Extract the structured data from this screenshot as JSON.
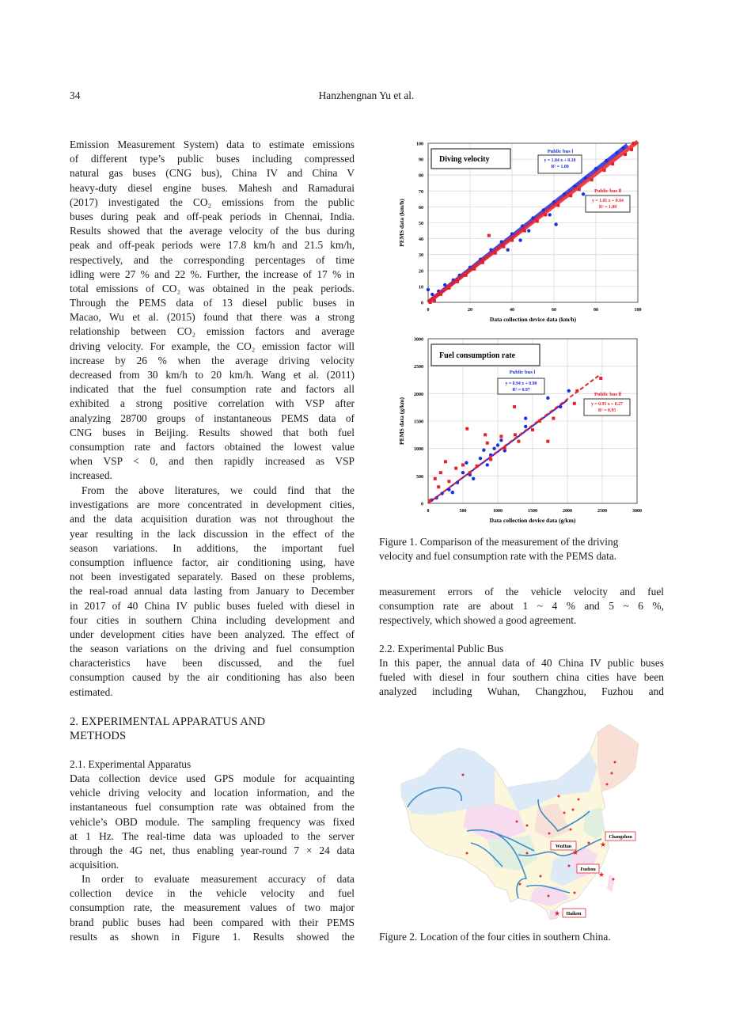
{
  "header": {
    "page_number": "34",
    "running_title": "Hanzhengnan Yu et al."
  },
  "left_column": {
    "p1": [
      "Emission Measurement System) data to estimate emissions",
      "of different type’s public buses including compressed",
      "natural gas buses (CNG bus), China IV and China V",
      "heavy-duty diesel engine buses. Mahesh and Ramadurai",
      "(2017) investigated the CO₂ emissions from the public",
      "buses during peak and off-peak periods in Chennai, India.",
      "Results showed that the average velocity of the bus during",
      "peak and off-peak periods were 17.8 km/h and 21.5 km/h,",
      "respectively, and the corresponding percentages of time",
      "idling were 27 % and 22 %. Further, the increase of 17 % in",
      "total emissions of CO₂ was obtained in the peak periods.",
      "Through the PEMS data of 13 diesel public buses in",
      "Macao, Wu et al. (2015) found that there was a strong",
      "relationship between CO₂ emission factors and average",
      "driving velocity. For example, the CO₂ emission factor will",
      "increase by 26 % when the average driving velocity",
      "decreased from 30 km/h to 20 km/h. Wang et al. (2011)",
      "indicated that the fuel consumption rate and factors all",
      "exhibited a strong positive correlation with VSP after",
      "analyzing 28700 groups of instantaneous PEMS data of",
      "CNG buses in Beijing. Results showed that both fuel",
      "consumption rate and factors obtained the lowest value",
      "when VSP < 0, and then rapidly increased as VSP",
      "increased."
    ],
    "p2": [
      "From the above literatures, we could find that the",
      "investigations are more concentrated in development cities,",
      "and the data acquisition duration was not throughout the",
      "year resulting in the lack discussion in the effect of the",
      "season variations. In additions, the important fuel",
      "consumption influence factor, air conditioning using, have",
      "not been investigated separately. Based on these problems,",
      "the real-road annual data lasting from January to December",
      "in 2017 of 40 China IV public buses fueled with diesel in",
      "four cities in southern China including development and",
      "under development cities have been analyzed. The effect of",
      "the season variations on the driving and fuel consumption",
      "characteristics have been discussed, and the fuel",
      "consumption caused by the air conditioning has also been",
      "estimated."
    ],
    "section_heading": [
      "2. EXPERIMENTAL APPARATUS AND",
      "METHODS"
    ],
    "subsection_2_1": "2.1. Experimental Apparatus",
    "p3": [
      "Data collection device used GPS module for acquainting",
      "vehicle driving velocity and location information, and the",
      "instantaneous fuel consumption rate was obtained from the",
      "vehicle’s OBD module. The sampling frequency was fixed",
      "at 1 Hz. The real-time data was uploaded to the server",
      "through the 4G net, thus enabling year-round 7 × 24 data",
      "acquisition."
    ],
    "p4": [
      "In order to evaluate measurement accuracy of data",
      "collection device in the vehicle velocity and fuel",
      "consumption rate, the measurement values of two major",
      "brand public buses had been compared with their PEMS",
      "results as shown in Figure 1. Results showed the"
    ]
  },
  "right_column": {
    "figure1_caption": [
      "Figure 1. Comparison of the measurement of the driving",
      "velocity and fuel consumption rate with the PEMS data."
    ],
    "p5": [
      "measurement errors of the vehicle velocity and fuel",
      "consumption rate are about 1 ~ 4 % and 5 ~ 6 %,",
      "respectively, which showed a good agreement."
    ],
    "subsection_2_2": "2.2. Experimental Public Bus",
    "p6": [
      "In this paper, the annual data of 40 China IV public buses",
      "fueled with diesel in four southern china cities have been",
      "analyzed including Wuhan, Changzhou, Fuzhou and"
    ],
    "figure2_caption": "Figure 2. Location of the four cities in southern China."
  },
  "map": {
    "cities": [
      "Changzhou",
      "WuHan",
      "Fuzhou",
      "Haikou"
    ]
  },
  "chart_data": [
    {
      "type": "scatter",
      "title": "Diving velocity",
      "xlabel": "Data collection device data (km/h)",
      "ylabel": "PEMS data (km/h)",
      "xlim": [
        0,
        100
      ],
      "ylim": [
        0,
        100
      ],
      "xticks": [
        "0",
        "20",
        "40",
        "60",
        "80",
        "100"
      ],
      "yticks": [
        "0",
        "10",
        "20",
        "30",
        "40",
        "50",
        "60",
        "70",
        "80",
        "90",
        "100"
      ],
      "grid": true,
      "series": [
        {
          "name": "Public bus Ⅰ",
          "color": "#1a2fe0",
          "equation": "y = 1.04 x + 0.10",
          "r2": "R² = 1.00",
          "slope": 1.04,
          "intercept": 0.1,
          "points": [
            [
              0,
              8
            ],
            [
              2,
              5
            ],
            [
              5,
              7
            ],
            [
              8,
              11
            ],
            [
              12,
              14
            ],
            [
              15,
              17
            ],
            [
              20,
              22
            ],
            [
              25,
              27
            ],
            [
              30,
              33
            ],
            [
              35,
              38
            ],
            [
              40,
              43
            ],
            [
              45,
              48
            ],
            [
              48,
              45
            ],
            [
              50,
              53
            ],
            [
              55,
              58
            ],
            [
              58,
              55
            ],
            [
              60,
              63
            ],
            [
              61,
              49
            ],
            [
              65,
              68
            ],
            [
              70,
              73
            ],
            [
              74,
              68
            ],
            [
              75,
              78
            ],
            [
              80,
              84
            ],
            [
              85,
              89
            ],
            [
              90,
              94
            ],
            [
              93,
              97
            ],
            [
              38,
              33
            ],
            [
              44,
              39
            ]
          ]
        },
        {
          "name": "Public bus Ⅱ",
          "color": "#e8202a",
          "equation": "y = 1.01 x + 0.04",
          "r2": "R² = 1.00",
          "slope": 1.01,
          "intercept": 0.04,
          "points": [
            [
              1,
              0
            ],
            [
              3,
              1
            ],
            [
              6,
              5
            ],
            [
              10,
              9
            ],
            [
              14,
              13
            ],
            [
              18,
              17
            ],
            [
              22,
              21
            ],
            [
              26,
              25
            ],
            [
              29,
              42
            ],
            [
              32,
              31
            ],
            [
              36,
              35
            ],
            [
              40,
              39
            ],
            [
              46,
              45
            ],
            [
              52,
              51
            ],
            [
              56,
              55
            ],
            [
              62,
              61
            ],
            [
              68,
              67
            ],
            [
              72,
              71
            ],
            [
              78,
              77
            ],
            [
              84,
              83
            ],
            [
              88,
              87
            ],
            [
              94,
              93
            ],
            [
              97,
              96
            ],
            [
              98,
              100
            ]
          ]
        }
      ]
    },
    {
      "type": "scatter",
      "title": "Fuel consumption rate",
      "xlabel": "Data collection device data (g/km)",
      "ylabel": "PEMS data (g/km)",
      "xlim": [
        0,
        3000
      ],
      "ylim": [
        0,
        3000
      ],
      "xticks": [
        "0",
        "500",
        "1000",
        "1500",
        "2000",
        "2500",
        "3000"
      ],
      "yticks": [
        "0",
        "500",
        "1000",
        "1500",
        "2000",
        "2500",
        "3000"
      ],
      "grid": true,
      "series": [
        {
          "name": "Public bus Ⅰ",
          "color": "#1a2fe0",
          "equation": "y = 0.94 x + 0.90",
          "r2": "R² = 0.97",
          "slope": 0.94,
          "intercept": 0.9,
          "points": [
            [
              50,
              60
            ],
            [
              120,
              100
            ],
            [
              200,
              180
            ],
            [
              300,
              250
            ],
            [
              350,
              200
            ],
            [
              420,
              380
            ],
            [
              500,
              560
            ],
            [
              550,
              740
            ],
            [
              600,
              520
            ],
            [
              650,
              450
            ],
            [
              750,
              820
            ],
            [
              800,
              970
            ],
            [
              850,
              700
            ],
            [
              900,
              880
            ],
            [
              950,
              1000
            ],
            [
              1000,
              1060
            ],
            [
              1050,
              1150
            ],
            [
              1100,
              960
            ],
            [
              1400,
              1550
            ],
            [
              1400,
              1400
            ],
            [
              1720,
              1920
            ],
            [
              1900,
              1760
            ],
            [
              2020,
              2050
            ]
          ]
        },
        {
          "name": "Public bus Ⅱ",
          "color": "#e8202a",
          "equation": "y = 0.95 x + 0.27",
          "r2": "R² = 0.95",
          "slope": 0.95,
          "intercept": 0.27,
          "points": [
            [
              30,
              50
            ],
            [
              100,
              450
            ],
            [
              150,
              300
            ],
            [
              180,
              560
            ],
            [
              250,
              760
            ],
            [
              300,
              400
            ],
            [
              400,
              640
            ],
            [
              500,
              700
            ],
            [
              560,
              1360
            ],
            [
              600,
              560
            ],
            [
              700,
              680
            ],
            [
              820,
              1250
            ],
            [
              850,
              1100
            ],
            [
              900,
              800
            ],
            [
              1050,
              1220
            ],
            [
              1100,
              1000
            ],
            [
              1240,
              1760
            ],
            [
              1250,
              1250
            ],
            [
              1300,
              1130
            ],
            [
              1500,
              1340
            ],
            [
              1600,
              1500
            ],
            [
              1720,
              1130
            ],
            [
              1800,
              1550
            ],
            [
              2100,
              1820
            ],
            [
              2140,
              2050
            ],
            [
              2480,
              2280
            ]
          ]
        }
      ]
    }
  ]
}
